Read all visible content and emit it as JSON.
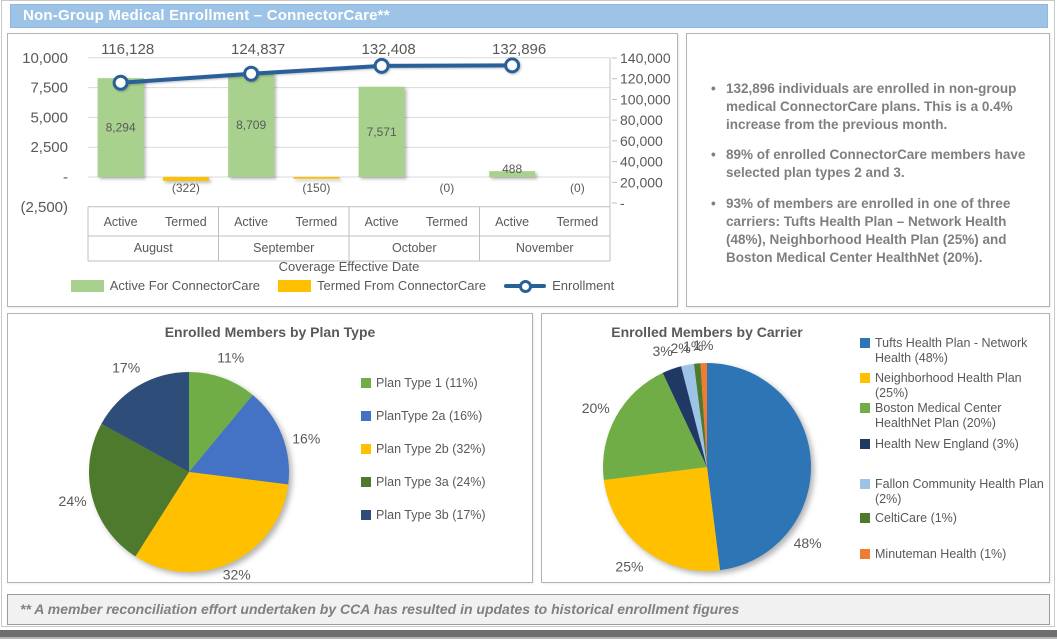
{
  "title_bar": {
    "title": "Non-Group Medical Enrollment – ConnectorCare**"
  },
  "insights": {
    "bullets": [
      "132,896 individuals are enrolled in non-group medical ConnectorCare plans. This is a 0.4% increase from the previous month.",
      "89% of enrolled ConnectorCare members have selected plan types 2 and 3.",
      "93% of members are enrolled in one of three carriers: Tufts Health Plan – Network Health (48%), Neighborhood Health Plan (25%) and Boston Medical Center HealthNet (20%)."
    ]
  },
  "footer": {
    "text": "** A member reconciliation effort undertaken by CCA has resulted in updates to historical enrollment figures"
  },
  "colors": {
    "title_bar_bg": "#9DC3E6",
    "active_green": "#A9D18E",
    "termed_yellow": "#FFC000",
    "enrollment_line": "#2A6099",
    "axis_text": "#595959",
    "gridline": "#D9D9D9",
    "table_line": "#BFBFBF",
    "bullet_text": "#7F7F7F"
  },
  "chart_data": [
    {
      "id": "enrollment-combo",
      "type": "bar",
      "subtype": "bar+line combo",
      "title": "",
      "xlabel": "Coverage Effective Date",
      "months": [
        "August",
        "September",
        "October",
        "November"
      ],
      "sub_categories": [
        "Active",
        "Termed"
      ],
      "series": [
        {
          "name": "Active For ConnectorCare",
          "type": "bar",
          "axis": "left",
          "color": "#A9D18E",
          "values": [
            8294,
            8709,
            7571,
            488
          ],
          "labels": [
            "8,294",
            "8,709",
            "7,571",
            "488"
          ]
        },
        {
          "name": "Termed From ConnectorCare",
          "type": "bar",
          "axis": "left",
          "color": "#FFC000",
          "values": [
            -322,
            -150,
            0,
            0
          ],
          "labels": [
            "(322)",
            "(150)",
            "(0)",
            "(0)"
          ]
        },
        {
          "name": "Enrollment",
          "type": "line",
          "axis": "right",
          "color": "#2A6099",
          "values": [
            116128,
            124837,
            132408,
            132896
          ],
          "labels": [
            "116,128",
            "124,837",
            "132,408",
            "132,896"
          ]
        }
      ],
      "left_axis": {
        "range": [
          -2500,
          10000
        ],
        "ticks": [
          10000,
          7500,
          5000,
          2500,
          0,
          -2500
        ],
        "tick_labels": [
          "10,000",
          "7,500",
          "5,000",
          "2,500",
          "-",
          "(2,500)"
        ]
      },
      "right_axis": {
        "range": [
          0,
          140000
        ],
        "ticks": [
          140000,
          120000,
          100000,
          80000,
          60000,
          40000,
          20000,
          0
        ],
        "tick_labels": [
          "140,000",
          "120,000",
          "100,000",
          "80,000",
          "60,000",
          "40,000",
          "20,000",
          "-"
        ]
      },
      "grid": true,
      "legend_position": "bottom"
    },
    {
      "id": "plan-type-pie",
      "type": "pie",
      "title": "Enrolled Members by Plan Type",
      "legend_position": "right",
      "slices": [
        {
          "label": "Plan Type 1 (11%)",
          "pct": 11,
          "data_label": "11%",
          "color": "#70AD47"
        },
        {
          "label": "PlanType 2a (16%)",
          "pct": 16,
          "data_label": "16%",
          "color": "#4472C4"
        },
        {
          "label": "Plan Type 2b (32%)",
          "pct": 32,
          "data_label": "32%",
          "color": "#FFC000"
        },
        {
          "label": "Plan Type 3a (24%)",
          "pct": 24,
          "data_label": "24%",
          "color": "#4E7A2E"
        },
        {
          "label": "Plan Type 3b (17%)",
          "pct": 17,
          "data_label": "17%",
          "color": "#2E4D78"
        }
      ]
    },
    {
      "id": "carrier-pie",
      "type": "pie",
      "title": "Enrolled Members by Carrier",
      "legend_position": "right",
      "slices": [
        {
          "label": "Tufts Health Plan - Network Health (48%)",
          "pct": 48,
          "data_label": "48%",
          "color": "#2E75B6"
        },
        {
          "label": "Neighborhood Health Plan (25%)",
          "pct": 25,
          "data_label": "25%",
          "color": "#FFC000"
        },
        {
          "label": "Boston Medical Center HealthNet Plan (20%)",
          "pct": 20,
          "data_label": "20%",
          "color": "#70AD47"
        },
        {
          "label": "Health New England (3%)",
          "pct": 3,
          "data_label": "3%",
          "color": "#1F3864"
        },
        {
          "label": "Fallon Community Health Plan (2%)",
          "pct": 2,
          "data_label": "2%",
          "color": "#9DC3E6"
        },
        {
          "label": "CeltiCare (1%)",
          "pct": 1,
          "data_label": "1%",
          "color": "#4E7A2E"
        },
        {
          "label": "Minuteman Health (1%)",
          "pct": 1,
          "data_label": "1%",
          "color": "#ED7D31"
        }
      ]
    }
  ]
}
